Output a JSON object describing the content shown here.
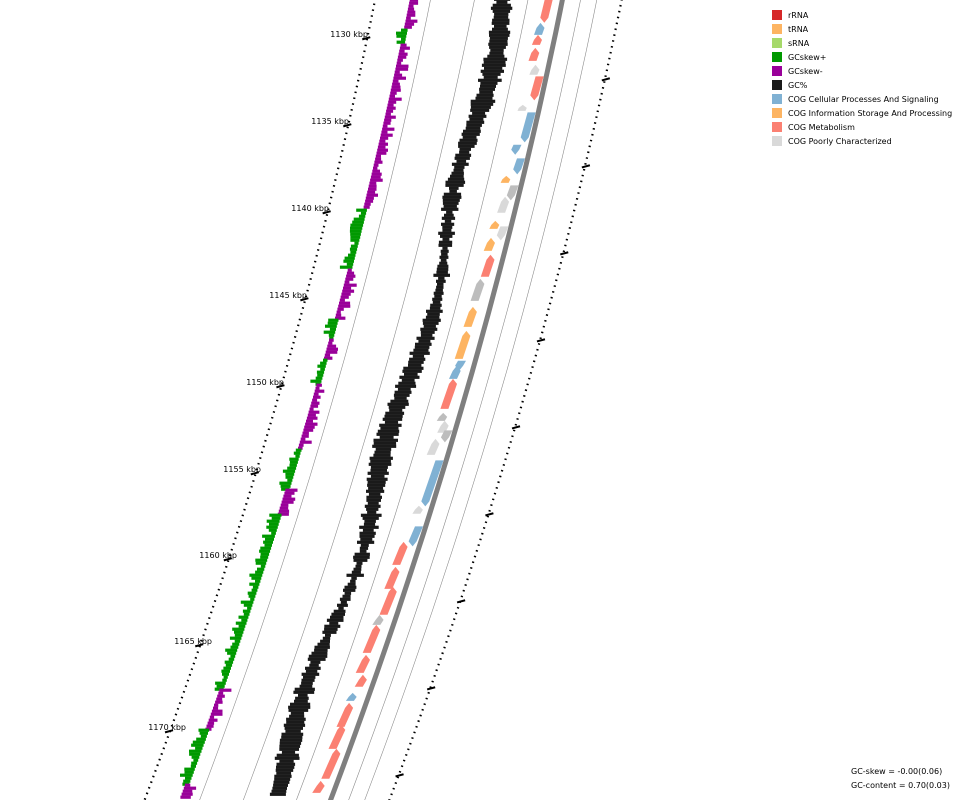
{
  "map": {
    "ruler_labels": [
      "1130 kbp",
      "1135 kbp",
      "1140 kbp",
      "1145 kbp",
      "1150 kbp",
      "1155 kbp",
      "1160 kbp",
      "1165 kbp",
      "1170 kbp"
    ],
    "colors": {
      "rRNA": "#d62728",
      "tRNA": "#fdb462",
      "sRNA": "#a6d96a",
      "gcskew_pos": "#009900",
      "gcskew_neg": "#990099",
      "gc_content": "#1a1a1a",
      "cog_cellular": "#80b1d3",
      "cog_info": "#fdb462",
      "cog_metabolism": "#fb8072",
      "cog_poor": "#d9d9d9",
      "backbone": "#7f7f7f",
      "unclassified": "#bdbdbd"
    }
  },
  "legend": {
    "items": [
      {
        "label": "rRNA",
        "color": "#d62728"
      },
      {
        "label": "tRNA",
        "color": "#fdb462"
      },
      {
        "label": "sRNA",
        "color": "#a6d96a"
      },
      {
        "label": "GCskew+",
        "color": "#009900"
      },
      {
        "label": "GCskew-",
        "color": "#990099"
      },
      {
        "label": "GC%",
        "color": "#1a1a1a"
      },
      {
        "label": "COG Cellular Processes And Signaling",
        "color": "#80b1d3"
      },
      {
        "label": "COG Information Storage And Processing",
        "color": "#fdb462"
      },
      {
        "label": "COG Metabolism",
        "color": "#fb8072"
      },
      {
        "label": "COG Poorly Characterized",
        "color": "#d9d9d9"
      }
    ]
  },
  "stats": {
    "gc_skew": "GC-skew = -0.00(0.06)",
    "gc_content": "GC-content = 0.70(0.03)"
  }
}
